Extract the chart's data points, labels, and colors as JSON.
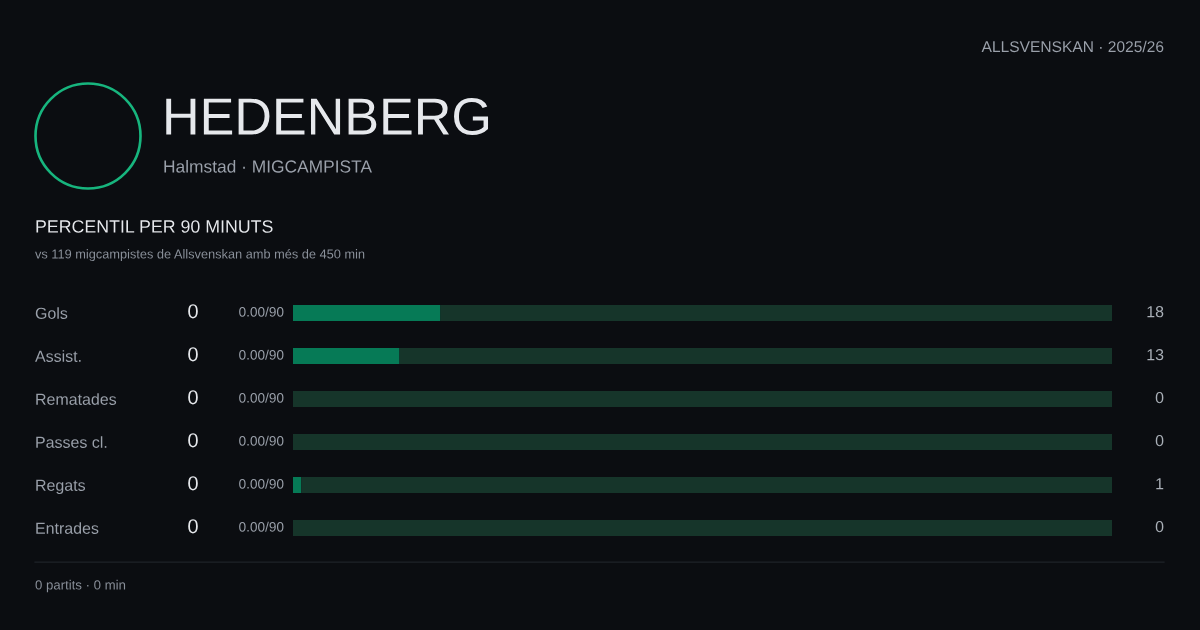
{
  "chart_data": {
    "type": "bar",
    "orientation": "horizontal",
    "stacked": true,
    "title": "HEDENBERG",
    "subtitle": "Halmstad · MIGCAMPISTA",
    "categories": [
      "Gols",
      "Assist.",
      "Rematades",
      "Passes cl.",
      "Regats",
      "Entrades"
    ],
    "series": [
      {
        "color": "#067a56",
        "values": [
          18,
          13,
          0,
          0,
          1,
          0
        ],
        "value_labels": [
          "18",
          "13",
          "0",
          "0",
          "1",
          "0"
        ]
      },
      {
        "color": "#16352a",
        "values": [
          82,
          87,
          100,
          100,
          99,
          100
        ]
      }
    ],
    "xlim": [
      0,
      100
    ],
    "tick_labels": "y",
    "annotations": [
      "ALLSVENSKAN · 2025/26",
      "PERCENTIL PER 90 MINUTS",
      "vs 119 migcampistes de Allsvenskan amb més de 450 min",
      "0 partits · 0 min",
      "0",
      "0.00/90",
      "0",
      "0.00/90",
      "0",
      "0.00/90",
      "0",
      "0.00/90",
      "0",
      "0.00/90",
      "0",
      "0.00/90"
    ]
  }
}
